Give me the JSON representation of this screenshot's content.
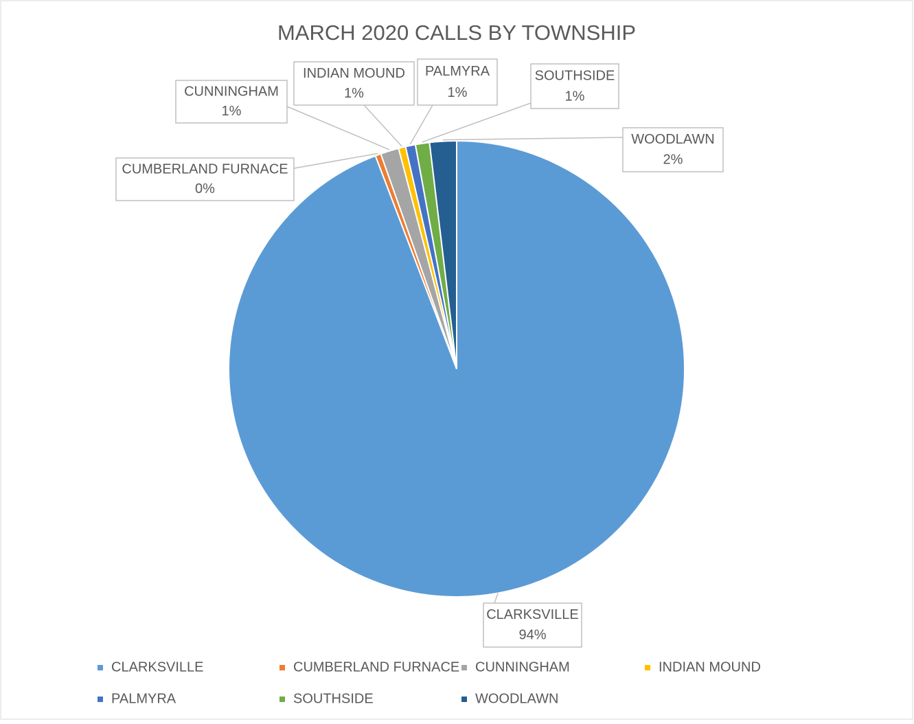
{
  "chart_data": {
    "type": "pie",
    "title": "MARCH 2020 CALLS BY TOWNSHIP",
    "categories": [
      "CLARKSVILLE",
      "CUMBERLAND FURNACE",
      "CUNNINGHAM",
      "INDIAN MOUND",
      "PALMYRA",
      "SOUTHSIDE",
      "WOODLAWN"
    ],
    "values": [
      94.2,
      0.4,
      1.3,
      0.5,
      0.7,
      1.0,
      1.9
    ],
    "value_labels": [
      "94%",
      "0%",
      "1%",
      "1%",
      "1%",
      "1%",
      "2%"
    ],
    "colors": [
      "#5b9bd5",
      "#ed7d31",
      "#a5a5a5",
      "#ffc000",
      "#4472c4",
      "#70ad47",
      "#255e91"
    ],
    "legend": "bottom"
  }
}
